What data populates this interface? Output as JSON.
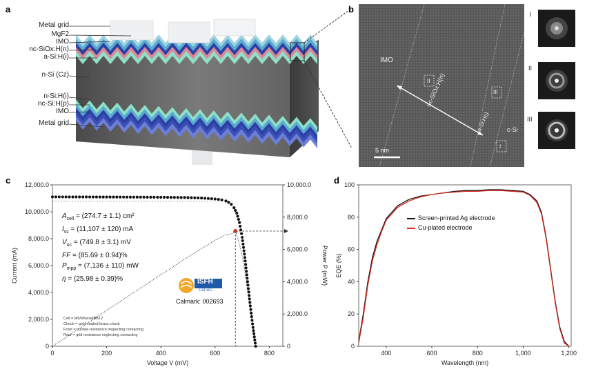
{
  "panel_a": {
    "label": "a",
    "left_labels": [
      "Metal grid",
      "MgF2",
      "IMO",
      "nc-SiOx:H(n)",
      "a-Si:H(i)",
      "n-Si (Cz)",
      "n-Si:H(i)",
      "nc-Si:H(p)",
      "IMO",
      "Metal grid"
    ]
  },
  "panel_b": {
    "label": "b",
    "tem_labels": {
      "imo": "IMO",
      "nc": "nc-SiOx:H(n)",
      "asi": "a-Si:H(i)",
      "csi": "c-Si",
      "scale": "5 nm"
    },
    "boxes": [
      "II",
      "III",
      "I"
    ],
    "fft_labels": [
      "I",
      "II",
      "III"
    ]
  },
  "chart_data": [
    {
      "panel": "c",
      "type": "line",
      "title": "",
      "xlabel": "Voltage V (mV)",
      "ylabel": "Current (mA)",
      "y2label": "Power P (mW)",
      "xlim": [
        0,
        850
      ],
      "ylim": [
        0,
        12000
      ],
      "y2lim": [
        0,
        10000
      ],
      "x_ticks": [
        "0",
        "200",
        "400",
        "600",
        "800"
      ],
      "y_ticks": [
        "0",
        "2,000.0",
        "4,000.0",
        "6,000.0",
        "8,000.0",
        "10,000.0",
        "12,000.0"
      ],
      "y2_ticks": [
        "0",
        "2,000.0",
        "4,000.0",
        "6,000.0",
        "8,000.0",
        "10,000.0"
      ],
      "series": [
        {
          "name": "Current",
          "style": "dots",
          "points": [
            [
              0,
              11107
            ],
            [
              50,
              11105
            ],
            [
              100,
              11102
            ],
            [
              150,
              11100
            ],
            [
              200,
              11097
            ],
            [
              250,
              11094
            ],
            [
              300,
              11090
            ],
            [
              350,
              11085
            ],
            [
              400,
              11078
            ],
            [
              450,
              11068
            ],
            [
              500,
              11052
            ],
            [
              550,
              11020
            ],
            [
              600,
              10950
            ],
            [
              625,
              10880
            ],
            [
              640,
              10800
            ],
            [
              650,
              10700
            ],
            [
              660,
              10550
            ],
            [
              670,
              10300
            ],
            [
              680,
              9900
            ],
            [
              690,
              9200
            ],
            [
              700,
              8100
            ],
            [
              710,
              6600
            ],
            [
              720,
              4800
            ],
            [
              730,
              3000
            ],
            [
              740,
              1400
            ],
            [
              749.8,
              0
            ]
          ]
        },
        {
          "name": "Power",
          "style": "dotted",
          "points": [
            [
              0,
              0
            ],
            [
              100,
              1110
            ],
            [
              200,
              2219
            ],
            [
              300,
              3327
            ],
            [
              400,
              4431
            ],
            [
              500,
              5526
            ],
            [
              600,
              6570
            ],
            [
              640,
              6912
            ],
            [
              660,
              6963
            ],
            [
              675,
              7136
            ],
            [
              690,
              6348
            ],
            [
              705,
              5200
            ],
            [
              720,
              3456
            ],
            [
              735,
              1800
            ],
            [
              749.8,
              0
            ]
          ]
        }
      ],
      "mpp": {
        "voltage": 675,
        "current": 10571,
        "power": 7136
      },
      "params": [
        {
          "sym": "A",
          "sub": "cell",
          "text": " = (274.7 ± 1.1) cm²"
        },
        {
          "sym": "I",
          "sub": "sc",
          "text": " = (11,107 ± 120) mA"
        },
        {
          "sym": "V",
          "sub": "oc",
          "text": " = (749.8 ± 3.1) mV"
        },
        {
          "sym": "FF",
          "sub": "",
          "text": " = (85.69 ± 0.94)%"
        },
        {
          "sym": "P",
          "sub": "mpp",
          "text": " = (7,136 ± 110) mW"
        },
        {
          "sym": "η",
          "sub": "",
          "text": " = (25.98 ± 0.39)%"
        }
      ],
      "logo": {
        "name": "ISFH",
        "sub": "CalTeC"
      },
      "calmark": "Calmark: 002693",
      "notes": [
        "Cell = M6/bifacial/BB12",
        "Chuck = gold-coated brass chuck",
        "Front = busbar-resistance neglecting contacting",
        "Rear = grid-resistance neglecting contacting"
      ]
    },
    {
      "panel": "d",
      "type": "line",
      "title": "",
      "xlabel": "Wavelength (nm)",
      "ylabel": "EQE (%)",
      "xlim": [
        280,
        1210
      ],
      "ylim": [
        0,
        100
      ],
      "x_ticks": [
        "400",
        "600",
        "800",
        "1,000",
        "1,200"
      ],
      "y_ticks": [
        "0",
        "20",
        "40",
        "60",
        "80",
        "100"
      ],
      "legend": "center-left",
      "series": [
        {
          "name": "Screen-printed Ag electrode",
          "color": "#111111",
          "points": [
            [
              280,
              3
            ],
            [
              300,
              20
            ],
            [
              320,
              40
            ],
            [
              340,
              55
            ],
            [
              360,
              65
            ],
            [
              380,
              72
            ],
            [
              400,
              79
            ],
            [
              450,
              87
            ],
            [
              500,
              91
            ],
            [
              550,
              93
            ],
            [
              600,
              94
            ],
            [
              650,
              95
            ],
            [
              700,
              96
            ],
            [
              750,
              96.5
            ],
            [
              800,
              96.5
            ],
            [
              850,
              97
            ],
            [
              900,
              97
            ],
            [
              950,
              96.5
            ],
            [
              1000,
              96
            ],
            [
              1030,
              94
            ],
            [
              1060,
              90
            ],
            [
              1080,
              83
            ],
            [
              1100,
              68
            ],
            [
              1120,
              48
            ],
            [
              1140,
              28
            ],
            [
              1160,
              12
            ],
            [
              1180,
              3
            ],
            [
              1200,
              0
            ]
          ]
        },
        {
          "name": "Cu-plated electrode",
          "color": "#d42a20",
          "points": [
            [
              280,
              2
            ],
            [
              300,
              18
            ],
            [
              320,
              38
            ],
            [
              340,
              53
            ],
            [
              360,
              63
            ],
            [
              380,
              71
            ],
            [
              400,
              78
            ],
            [
              450,
              86
            ],
            [
              500,
              90
            ],
            [
              550,
              92.5
            ],
            [
              600,
              94
            ],
            [
              650,
              95
            ],
            [
              700,
              95.5
            ],
            [
              750,
              96
            ],
            [
              800,
              96
            ],
            [
              850,
              96.5
            ],
            [
              900,
              96.5
            ],
            [
              950,
              96
            ],
            [
              1000,
              95.5
            ],
            [
              1030,
              93.5
            ],
            [
              1060,
              89
            ],
            [
              1080,
              82
            ],
            [
              1100,
              67
            ],
            [
              1120,
              47
            ],
            [
              1140,
              27
            ],
            [
              1160,
              11
            ],
            [
              1180,
              2
            ],
            [
              1200,
              0
            ]
          ]
        }
      ]
    }
  ]
}
